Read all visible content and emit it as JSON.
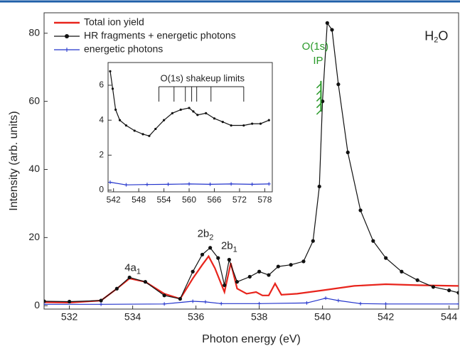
{
  "chart_data": [
    {
      "type": "line",
      "xlabel": "Photon energy (eV)",
      "ylabel": "Intensity (arb. units)",
      "xlim": [
        531.2,
        544.3
      ],
      "ylim": [
        -1,
        86
      ],
      "xticks": [
        532,
        534,
        536,
        538,
        540,
        542,
        544
      ],
      "yticks": [
        0,
        20,
        40,
        60,
        80
      ],
      "legend": "upper left",
      "series": [
        {
          "name": "Total ion yield",
          "color": "#e8241c",
          "marker": "none",
          "x": [
            531.2,
            532,
            533,
            533.5,
            533.9,
            534.4,
            535,
            535.5,
            535.9,
            536.2,
            536.4,
            536.6,
            536.9,
            537.1,
            537.3,
            537.6,
            537.9,
            538.1,
            538.3,
            538.5,
            538.7,
            539.2,
            540,
            541,
            542,
            543,
            544.3
          ],
          "values": [
            1,
            0.9,
            1.5,
            5,
            8,
            7,
            3.5,
            2,
            8,
            12,
            14.5,
            11,
            4,
            12.5,
            5,
            3.5,
            4,
            3,
            3,
            6.5,
            3.2,
            3.5,
            4.5,
            5.8,
            6.3,
            6,
            5.8
          ]
        },
        {
          "name": "HR fragments + energetic photons",
          "color": "#111111",
          "marker": "dot",
          "x": [
            531.2,
            532,
            533,
            533.5,
            533.9,
            534.4,
            535,
            535.5,
            535.9,
            536.2,
            536.45,
            536.7,
            536.9,
            537.05,
            537.3,
            537.7,
            538,
            538.3,
            538.6,
            539,
            539.4,
            539.7,
            539.9,
            540,
            540.15,
            540.3,
            540.5,
            540.8,
            541.2,
            541.6,
            542,
            542.5,
            543,
            543.5,
            544,
            544.3
          ],
          "values": [
            1.3,
            1.2,
            1.5,
            5,
            8.3,
            7,
            3,
            2,
            10,
            15,
            17,
            14,
            6,
            13.5,
            7,
            8.5,
            10,
            9,
            11.5,
            12,
            13,
            19,
            35,
            60,
            83,
            81,
            65,
            45,
            28,
            19,
            14,
            10,
            7.5,
            5.5,
            4.5,
            3.8
          ]
        },
        {
          "name": "energetic photons",
          "color": "#2233cc",
          "marker": "plus",
          "x": [
            531.2,
            533,
            535,
            535.9,
            536.3,
            536.8,
            538,
            539.5,
            540.1,
            540.5,
            541.2,
            542,
            544.3
          ],
          "values": [
            0.4,
            0.4,
            0.5,
            1.3,
            1.1,
            0.6,
            0.6,
            0.8,
            2.2,
            1.5,
            0.6,
            0.5,
            0.5
          ]
        }
      ],
      "annotations": [
        {
          "parts": [
            "4a",
            "1"
          ],
          "x": 534,
          "y": 11
        },
        {
          "parts": [
            "2b",
            "2"
          ],
          "x": 536.3,
          "y": 21
        },
        {
          "parts": [
            "2b",
            "1"
          ],
          "x": 537.05,
          "y": 17.5
        },
        {
          "parts": [
            "H",
            "2",
            "O"
          ],
          "x": 543.6,
          "y": 79
        }
      ],
      "ip_marker": {
        "lines": [
          "O(1s)",
          "IP"
        ],
        "x": 539.95,
        "color": "#2a9a2a"
      }
    },
    {
      "type": "line",
      "xlim": [
        540.7,
        579.8
      ],
      "ylim": [
        -0.1,
        7.3
      ],
      "xticks": [
        542,
        548,
        554,
        560,
        566,
        572,
        578
      ],
      "yticks": [
        0,
        2,
        4,
        6
      ],
      "series": [
        {
          "color": "#111111",
          "marker": "dot",
          "x": [
            541.2,
            541.8,
            542.5,
            543.5,
            545,
            547,
            549,
            550.5,
            552,
            554,
            556,
            558,
            560,
            561,
            562,
            564,
            566,
            568,
            570,
            573,
            575,
            577,
            579
          ],
          "values": [
            6.8,
            5.8,
            4.6,
            4,
            3.7,
            3.4,
            3.2,
            3.1,
            3.5,
            4.0,
            4.4,
            4.6,
            4.7,
            4.5,
            4.3,
            4.4,
            4.1,
            3.9,
            3.7,
            3.7,
            3.8,
            3.8,
            4.0
          ]
        },
        {
          "color": "#2233cc",
          "marker": "plus",
          "x": [
            541.2,
            545,
            550,
            555,
            560,
            565,
            570,
            575,
            579
          ],
          "values": [
            0.45,
            0.3,
            0.32,
            0.33,
            0.35,
            0.33,
            0.35,
            0.33,
            0.35
          ]
        }
      ],
      "shakeup_label": "O(1s) shakeup limits",
      "shakeup_lines": [
        552.8,
        556.4,
        559.1,
        560.6,
        561.8,
        565.2,
        573.0
      ]
    }
  ]
}
